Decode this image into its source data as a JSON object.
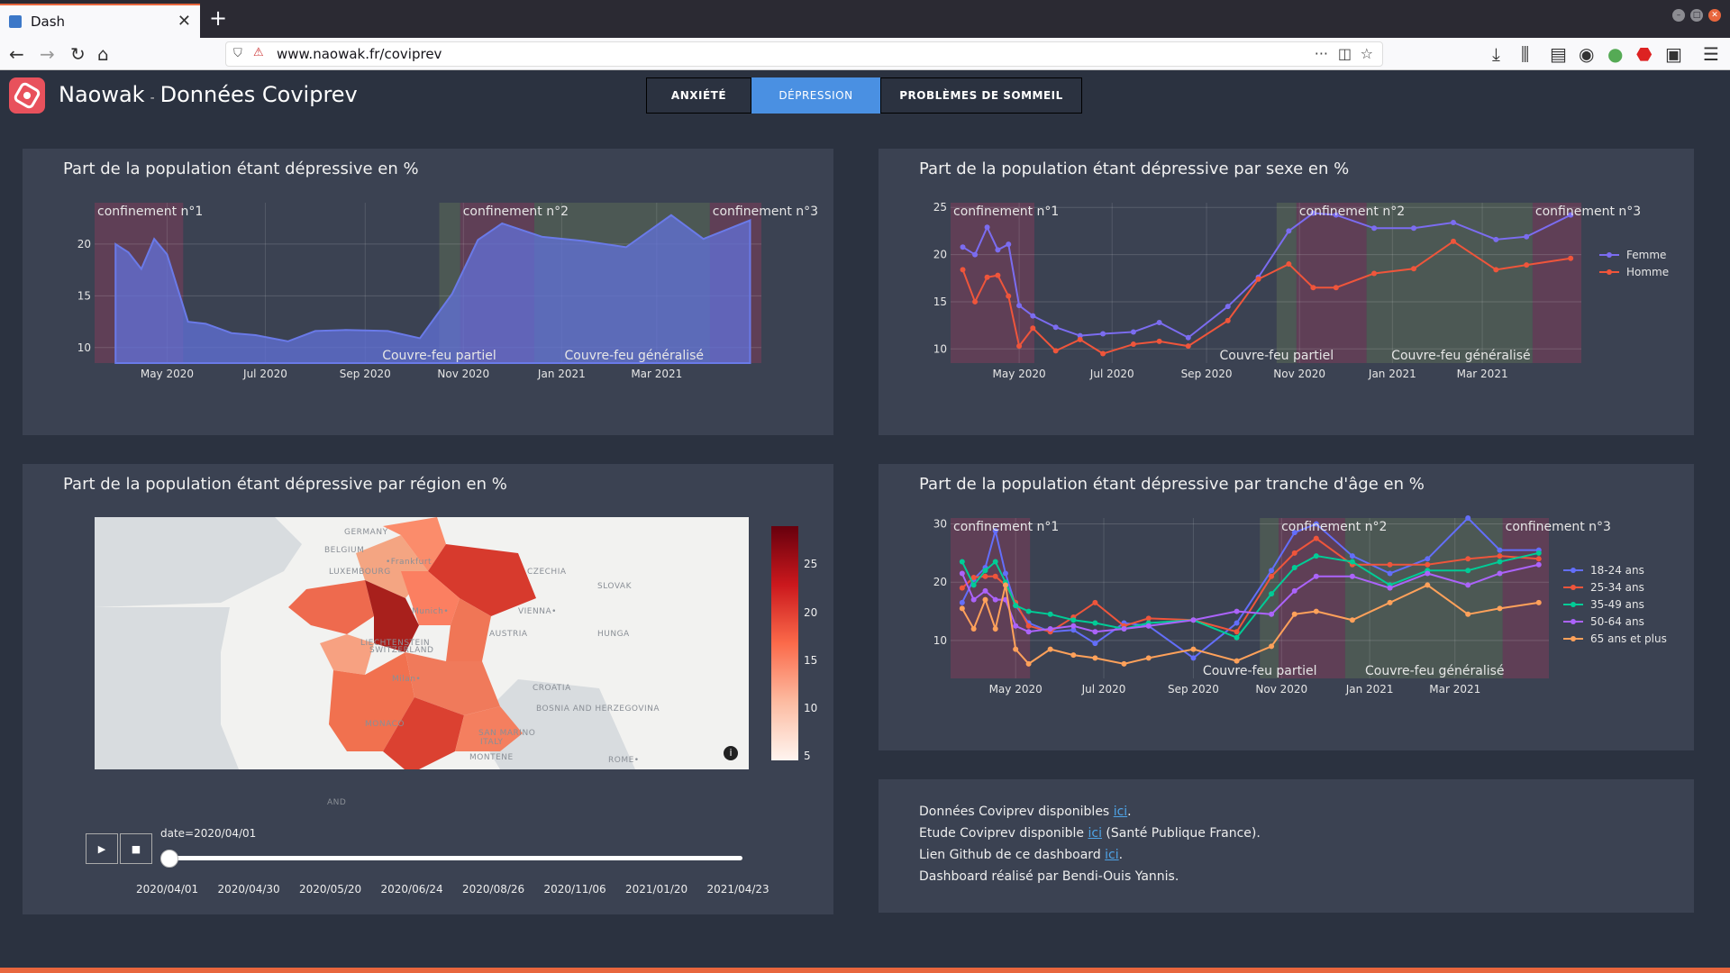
{
  "browser": {
    "tab_title": "Dash",
    "url": "www.naowak.fr/coviprev"
  },
  "header": {
    "brand": "Naowak",
    "separator": "-",
    "title": "Données Coviprev",
    "tabs": [
      "ANXIÉTÉ",
      "DÉPRESSION",
      "PROBLÈMES DE SOMMEIL"
    ],
    "active_tab": "DÉPRESSION"
  },
  "colors": {
    "bg": "#2b3240",
    "card": "#3b4252",
    "active_tab": "#4a90e2",
    "area": "#6272d9",
    "femme": "#7b6cf0",
    "homme": "#ef553b",
    "age": [
      "#636efa",
      "#ef553b",
      "#00cc96",
      "#ab63fa",
      "#ffa15a"
    ]
  },
  "annotations": {
    "c1": "confinement n°1",
    "c2": "confinement n°2",
    "c3": "confinement n°3",
    "cf1": "Couvre-feu partiel",
    "cf2": "Couvre-feu généralisé"
  },
  "chart_data": [
    {
      "type": "area",
      "title": "Part de la population étant dépressive en %",
      "x": [
        "2020-03-30",
        "2020-04-07",
        "2020-04-15",
        "2020-04-23",
        "2020-05-01",
        "2020-05-14",
        "2020-05-25",
        "2020-06-10",
        "2020-06-25",
        "2020-07-15",
        "2020-08-01",
        "2020-08-20",
        "2020-09-15",
        "2020-10-05",
        "2020-10-25",
        "2020-11-10",
        "2020-11-25",
        "2020-12-20",
        "2021-01-15",
        "2021-02-10",
        "2021-03-10",
        "2021-03-30",
        "2021-04-28"
      ],
      "y": [
        20.0,
        19.2,
        17.6,
        20.5,
        19.0,
        12.5,
        12.3,
        11.4,
        11.2,
        10.6,
        11.6,
        11.7,
        11.6,
        10.9,
        15.2,
        20.4,
        22.0,
        20.7,
        20.3,
        19.7,
        22.8,
        20.5,
        22.3
      ],
      "ylim": [
        8.5,
        24
      ],
      "yticks": [
        10,
        15,
        20
      ],
      "xticks": [
        "May 2020",
        "Jul 2020",
        "Sep 2020",
        "Nov 2020",
        "Jan 2021",
        "Mar 2021"
      ]
    },
    {
      "type": "line",
      "title": "Part de la population étant dépressive par sexe en %",
      "x": [
        "2020-03-25",
        "2020-04-02",
        "2020-04-10",
        "2020-04-17",
        "2020-04-24",
        "2020-05-01",
        "2020-05-10",
        "2020-05-25",
        "2020-06-10",
        "2020-06-25",
        "2020-07-15",
        "2020-08-01",
        "2020-08-20",
        "2020-09-15",
        "2020-10-05",
        "2020-10-25",
        "2020-11-10",
        "2020-11-25",
        "2020-12-20",
        "2021-01-15",
        "2021-02-10",
        "2021-03-10",
        "2021-03-30",
        "2021-04-28"
      ],
      "ylim": [
        8.5,
        25.5
      ],
      "yticks": [
        10,
        15,
        20,
        25
      ],
      "xticks": [
        "May 2020",
        "Jul 2020",
        "Sep 2020",
        "Nov 2020",
        "Jan 2021",
        "Mar 2021"
      ],
      "series": [
        {
          "name": "Femme",
          "values": [
            20.8,
            20.0,
            22.9,
            20.5,
            21.1,
            14.6,
            13.5,
            12.3,
            11.4,
            11.6,
            11.8,
            12.8,
            11.2,
            14.5,
            17.6,
            22.5,
            24.4,
            24.2,
            22.8,
            22.8,
            23.4,
            21.6,
            21.9,
            24.2
          ]
        },
        {
          "name": "Homme",
          "values": [
            18.4,
            15.0,
            17.6,
            17.8,
            15.6,
            10.3,
            12.2,
            9.8,
            11.0,
            9.5,
            10.5,
            10.8,
            10.3,
            13.0,
            17.4,
            19.0,
            16.5,
            16.5,
            18.0,
            18.5,
            21.4,
            18.4,
            18.9,
            19.6
          ]
        }
      ]
    },
    {
      "type": "line",
      "title": "Part de la population étant dépressive par tranche d'âge en %",
      "x": [
        "2020-03-25",
        "2020-04-02",
        "2020-04-10",
        "2020-04-17",
        "2020-04-24",
        "2020-05-01",
        "2020-05-10",
        "2020-05-25",
        "2020-06-10",
        "2020-06-25",
        "2020-07-15",
        "2020-08-01",
        "2020-09-01",
        "2020-10-01",
        "2020-10-25",
        "2020-11-10",
        "2020-11-25",
        "2020-12-20",
        "2021-01-15",
        "2021-02-10",
        "2021-03-10",
        "2021-04-01",
        "2021-04-28"
      ],
      "ylim": [
        3.5,
        31
      ],
      "yticks": [
        10,
        20,
        30
      ],
      "xticks": [
        "May 2020",
        "Jul 2020",
        "Sep 2020",
        "Nov 2020",
        "Jan 2021",
        "Mar 2021"
      ],
      "series": [
        {
          "name": "18-24 ans",
          "values": [
            16.5,
            20.5,
            22.5,
            28.8,
            21.5,
            16.0,
            13.0,
            11.5,
            11.8,
            9.5,
            13.0,
            12.5,
            7.0,
            13.0,
            22.0,
            28.5,
            30.0,
            24.5,
            21.5,
            24.0,
            31.0,
            25.5,
            25.5
          ]
        },
        {
          "name": "25-34 ans",
          "values": [
            19.0,
            20.8,
            21.0,
            21.0,
            19.5,
            16.5,
            12.5,
            11.5,
            14.0,
            16.5,
            12.5,
            13.8,
            13.5,
            11.5,
            21.0,
            25.0,
            27.5,
            23.0,
            23.0,
            23.0,
            24.0,
            24.5,
            24.0
          ]
        },
        {
          "name": "35-49 ans",
          "values": [
            23.5,
            19.5,
            22.0,
            23.5,
            20.0,
            16.0,
            15.0,
            14.5,
            13.5,
            13.0,
            12.0,
            13.0,
            13.5,
            10.5,
            18.0,
            22.5,
            24.5,
            23.5,
            19.5,
            22.0,
            22.0,
            23.5,
            25.0
          ]
        },
        {
          "name": "50-64 ans",
          "values": [
            21.5,
            17.0,
            18.5,
            17.0,
            17.0,
            12.5,
            11.5,
            12.0,
            12.5,
            11.5,
            12.0,
            12.5,
            13.5,
            15.0,
            14.5,
            18.5,
            21.0,
            21.0,
            19.0,
            21.5,
            19.5,
            21.5,
            23.0
          ]
        },
        {
          "name": "65 ans et plus",
          "values": [
            15.5,
            12.0,
            17.0,
            12.0,
            19.5,
            8.5,
            6.0,
            8.5,
            7.5,
            7.0,
            6.0,
            7.0,
            8.5,
            6.5,
            9.0,
            14.5,
            15.0,
            13.5,
            16.5,
            19.5,
            14.5,
            15.5,
            16.5
          ]
        }
      ]
    },
    {
      "type": "heatmap",
      "title": "Part de la population étant dépressive par région en %",
      "colorbar_ticks": [
        5,
        10,
        15,
        20,
        25
      ],
      "date_label": "date=2020/04/01",
      "slider_dates": [
        "2020/04/01",
        "2020/04/30",
        "2020/05/20",
        "2020/06/24",
        "2020/08/26",
        "2020/11/06",
        "2021/01/20",
        "2021/04/23"
      ]
    }
  ],
  "map": {
    "labels": [
      "GERMANY",
      "BELGIUM",
      "LUXEMBOURG",
      "•Frankfurt",
      "CZECHIA",
      "SLOVAK",
      "Munich•",
      "VIENNA•",
      "AUSTRIA",
      "LIECHTENSTEIN",
      "SWITZERLAND",
      "HUNGA",
      "Milan•",
      "CROATIA",
      "BOSNIA AND HERZEGOVINA",
      "SAN MARINO",
      "ITALY",
      "MONTENE",
      "ROME•",
      "AND",
      "MONACO"
    ]
  },
  "info": {
    "l1_pre": "Données Coviprev disponibles ",
    "l1_link": "ici",
    "l1_post": ".",
    "l2_pre": "Etude Coviprev disponible ",
    "l2_link": "ici",
    "l2_post": " (Santé Publique France).",
    "l3_pre": "Lien Github de ce dashboard ",
    "l3_link": "ici",
    "l3_post": ".",
    "l4": "Dashboard réalisé par Bendi-Ouis Yannis."
  }
}
